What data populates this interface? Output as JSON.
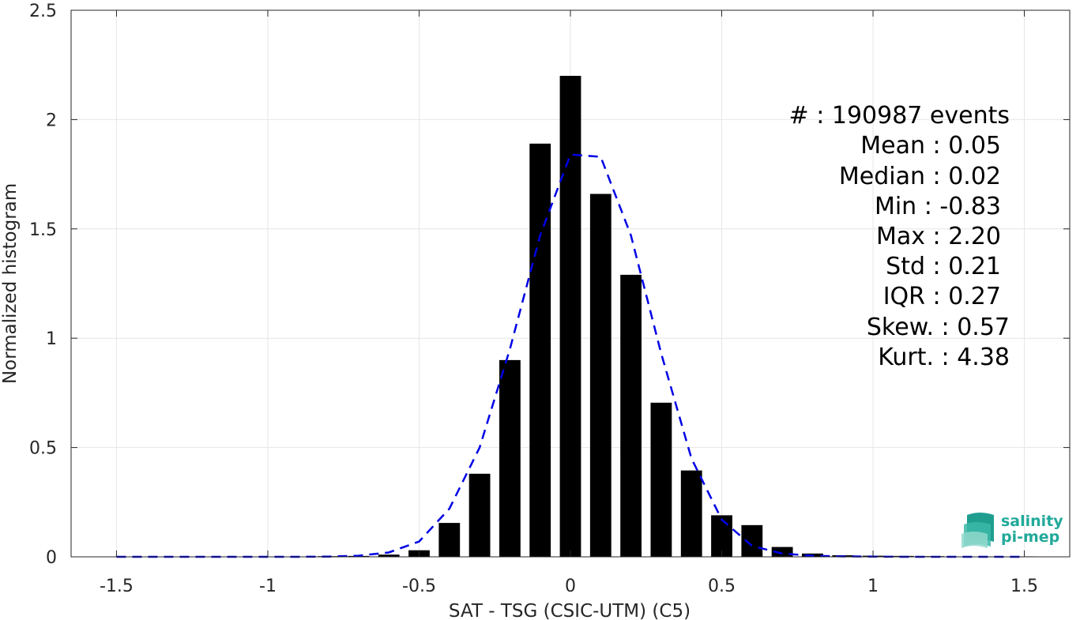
{
  "chart_data": {
    "type": "bar",
    "xlabel": "SAT - TSG (CSIC-UTM) (C5)",
    "ylabel": "Normalized histogram",
    "xlim": [
      -1.65,
      1.65
    ],
    "ylim": [
      0,
      2.5
    ],
    "x_ticks": [
      -1.5,
      -1,
      -0.5,
      0,
      0.5,
      1,
      1.5
    ],
    "x_tick_labels": [
      "-1.5",
      "-1",
      "-0.5",
      "0",
      "0.5",
      "1",
      "1.5"
    ],
    "y_ticks": [
      0,
      0.5,
      1,
      1.5,
      2,
      2.5
    ],
    "y_tick_labels": [
      "0",
      "0.5",
      "1",
      "1.5",
      "2",
      "2.5"
    ],
    "grid": true,
    "bar_width": 0.07,
    "series": [
      {
        "kind": "bar",
        "color": "#000000",
        "x": [
          -1.5,
          -1.4,
          -1.3,
          -1.2,
          -1.1,
          -1.0,
          -0.9,
          -0.8,
          -0.7,
          -0.6,
          -0.5,
          -0.4,
          -0.3,
          -0.2,
          -0.1,
          0.0,
          0.1,
          0.2,
          0.3,
          0.4,
          0.5,
          0.6,
          0.7,
          0.8,
          0.9,
          1.0,
          1.1,
          1.2,
          1.3,
          1.4,
          1.5
        ],
        "values": [
          0,
          0,
          0,
          0,
          0,
          0,
          0,
          0.003,
          0.004,
          0.01,
          0.03,
          0.155,
          0.38,
          0.9,
          1.89,
          2.2,
          1.66,
          1.29,
          0.705,
          0.395,
          0.19,
          0.145,
          0.045,
          0.015,
          0.007,
          0.005,
          0.004,
          0.003,
          0.002,
          0.002,
          0.002
        ]
      },
      {
        "kind": "line",
        "style": "dashed",
        "color": "#0000e6",
        "x": [
          -1.5,
          -1.4,
          -1.3,
          -1.2,
          -1.1,
          -1.0,
          -0.9,
          -0.8,
          -0.7,
          -0.6,
          -0.5,
          -0.4,
          -0.3,
          -0.2,
          -0.1,
          0.0,
          0.1,
          0.2,
          0.3,
          0.4,
          0.5,
          0.6,
          0.7,
          0.8,
          0.9,
          1.0,
          1.1,
          1.2,
          1.3,
          1.4,
          1.5
        ],
        "values": [
          0,
          0,
          0,
          0,
          0,
          0,
          0,
          0.001,
          0.005,
          0.02,
          0.07,
          0.22,
          0.5,
          0.95,
          1.47,
          1.84,
          1.83,
          1.47,
          0.93,
          0.45,
          0.17,
          0.05,
          0.015,
          0.005,
          0.002,
          0.001,
          0,
          0,
          0,
          0,
          0
        ]
      }
    ],
    "annotations": [
      "#  : 190987 events",
      "Mean : 0.05",
      "Median : 0.02",
      "Min : -0.83",
      "Max : 2.20",
      "Std : 0.21",
      "IQR : 0.27",
      "Skew. : 0.57",
      "Kurt. : 4.38"
    ]
  },
  "logo": {
    "line1": "salinity",
    "line2": "pi-mep",
    "color": "#21a99a"
  }
}
